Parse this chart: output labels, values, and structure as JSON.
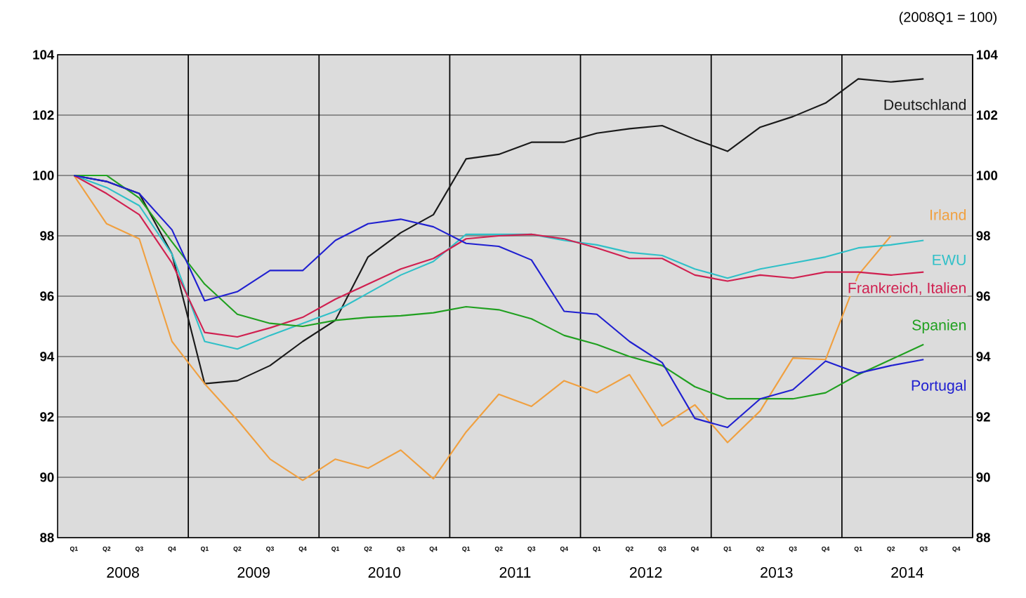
{
  "chart_data": {
    "type": "line",
    "subtitle": "(2008Q1 = 100)",
    "categories": [
      "Q1",
      "Q2",
      "Q3",
      "Q4",
      "Q1",
      "Q2",
      "Q3",
      "Q4",
      "Q1",
      "Q2",
      "Q3",
      "Q4",
      "Q1",
      "Q2",
      "Q3",
      "Q4",
      "Q1",
      "Q2",
      "Q3",
      "Q4",
      "Q1",
      "Q2",
      "Q3",
      "Q4",
      "Q1",
      "Q2",
      "Q3",
      "Q4"
    ],
    "annotations": [
      "2008",
      "2009",
      "2010",
      "2011",
      "2012",
      "2013",
      "2014"
    ],
    "ylim": [
      88,
      104
    ],
    "yticks": [
      88,
      90,
      92,
      94,
      96,
      98,
      100,
      102,
      104
    ],
    "y2lim": [
      88,
      104
    ],
    "y2ticks": [
      88,
      90,
      92,
      94,
      96,
      98,
      100,
      102,
      104
    ],
    "grid": true,
    "line_style": "solid",
    "series": [
      {
        "name": "Deutschland",
        "color": "#1a1a1a",
        "values": [
          100,
          99.8,
          99.4,
          97.4,
          93.1,
          93.2,
          93.7,
          94.5,
          95.2,
          97.3,
          98.1,
          98.7,
          100.55,
          100.7,
          101.1,
          101.1,
          101.4,
          101.55,
          101.65,
          101.2,
          100.8,
          101.6,
          101.95,
          102.4,
          103.2,
          103.1,
          103.2,
          null
        ]
      },
      {
        "name": "Irland",
        "color": "#f0a040",
        "values": [
          100,
          98.4,
          97.9,
          94.5,
          93.1,
          91.9,
          90.6,
          89.9,
          90.6,
          90.3,
          90.9,
          89.95,
          91.5,
          92.75,
          92.35,
          93.2,
          92.8,
          93.4,
          91.7,
          92.4,
          91.15,
          92.2,
          93.95,
          93.9,
          96.7,
          98.0,
          null,
          null
        ]
      },
      {
        "name": "EWU",
        "color": "#30c0c8",
        "values": [
          100,
          99.6,
          99.0,
          97.4,
          94.5,
          94.25,
          94.7,
          95.1,
          95.5,
          96.1,
          96.7,
          97.15,
          98.05,
          98.05,
          98.05,
          97.85,
          97.7,
          97.45,
          97.35,
          96.9,
          96.6,
          96.9,
          97.1,
          97.3,
          97.6,
          97.7,
          97.85,
          null
        ]
      },
      {
        "name": "Frankreich, Italien",
        "color": "#d02050",
        "values": [
          100,
          99.4,
          98.7,
          97.1,
          94.8,
          94.65,
          94.95,
          95.3,
          95.9,
          96.4,
          96.9,
          97.25,
          97.9,
          98.0,
          98.05,
          97.9,
          97.6,
          97.25,
          97.25,
          96.7,
          96.5,
          96.7,
          96.6,
          96.8,
          96.8,
          96.7,
          96.8,
          null
        ]
      },
      {
        "name": "Spanien",
        "color": "#20a020",
        "values": [
          100,
          100.0,
          99.25,
          97.8,
          96.4,
          95.4,
          95.1,
          95.0,
          95.2,
          95.3,
          95.35,
          95.45,
          95.65,
          95.55,
          95.25,
          94.7,
          94.4,
          94.0,
          93.7,
          93.0,
          92.6,
          92.6,
          92.6,
          92.8,
          93.4,
          93.9,
          94.4,
          null
        ]
      },
      {
        "name": "Portugal",
        "color": "#2020d0",
        "values": [
          100,
          99.8,
          99.4,
          98.2,
          95.85,
          96.15,
          96.85,
          96.85,
          97.85,
          98.4,
          98.55,
          98.3,
          97.75,
          97.65,
          97.2,
          95.5,
          95.4,
          94.5,
          93.8,
          91.95,
          91.65,
          92.6,
          92.9,
          93.85,
          93.45,
          93.7,
          93.9,
          null
        ]
      }
    ]
  }
}
